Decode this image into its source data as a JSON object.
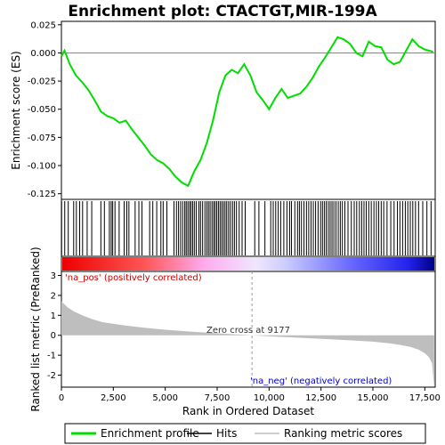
{
  "chart_data": {
    "type": "line",
    "title": "Enrichment plot: CTACTGT,MIR-199A",
    "colors": {
      "es_line": "#00dd00",
      "hits": "#000000",
      "metric_fill": "#bebebe",
      "pos_label": "#cc0000",
      "neg_label": "#0000cc",
      "zero_line": "#888888"
    },
    "top_panel": {
      "ylabel": "Enrichment score (ES)",
      "ylim": [
        -0.13,
        0.028
      ],
      "yticks": [
        0.025,
        0.0,
        -0.025,
        -0.05,
        -0.075,
        -0.1,
        -0.125
      ],
      "ytick_labels": [
        "0.025",
        "0.000",
        "-0.025",
        "-0.050",
        "-0.075",
        "-0.100",
        "-0.125"
      ],
      "series": [
        {
          "x": [
            0,
            150,
            400,
            700,
            1000,
            1300,
            1600,
            1900,
            2200,
            2500,
            2800,
            3100,
            3400,
            3700,
            4000,
            4300,
            4600,
            4900,
            5200,
            5500,
            5800,
            6100,
            6400,
            6700,
            7000,
            7300,
            7600,
            7900,
            8200,
            8500,
            8800,
            9100,
            9400,
            9700,
            10000,
            10300,
            10600,
            10900,
            11200,
            11500,
            11800,
            12100,
            12400,
            12700,
            13000,
            13300,
            13600,
            13900,
            14200,
            14500,
            14800,
            15100,
            15400,
            15700,
            16000,
            16300,
            16600,
            16900,
            17200,
            17500,
            17900
          ],
          "y": [
            -0.003,
            0.002,
            -0.01,
            -0.02,
            -0.026,
            -0.033,
            -0.042,
            -0.052,
            -0.056,
            -0.058,
            -0.062,
            -0.06,
            -0.068,
            -0.075,
            -0.082,
            -0.09,
            -0.095,
            -0.098,
            -0.103,
            -0.11,
            -0.115,
            -0.118,
            -0.105,
            -0.095,
            -0.08,
            -0.06,
            -0.035,
            -0.02,
            -0.015,
            -0.018,
            -0.01,
            -0.02,
            -0.035,
            -0.042,
            -0.05,
            -0.04,
            -0.032,
            -0.04,
            -0.038,
            -0.036,
            -0.03,
            -0.022,
            -0.012,
            -0.004,
            0.005,
            0.014,
            0.012,
            0.008,
            0.0,
            -0.003,
            0.01,
            0.006,
            0.005,
            -0.006,
            -0.01,
            -0.008,
            0.002,
            0.012,
            0.006,
            0.003,
            0.001
          ]
        }
      ]
    },
    "hits": [
      10,
      160,
      330,
      590,
      720,
      880,
      1020,
      1240,
      1460,
      1900,
      2070,
      2310,
      2400,
      2470,
      2580,
      2780,
      3020,
      3150,
      3250,
      3550,
      3730,
      3880,
      4250,
      4400,
      4590,
      4790,
      4900,
      5080,
      5420,
      5540,
      5640,
      5740,
      5840,
      5940,
      6010,
      6090,
      6170,
      6240,
      6320,
      6400,
      6490,
      6620,
      6700,
      6800,
      6910,
      7000,
      7080,
      7160,
      7250,
      7330,
      7400,
      7480,
      7560,
      7640,
      7720,
      7800,
      7880,
      7960,
      8050,
      8140,
      8240,
      8330,
      8430,
      8560,
      8700,
      8850,
      9310,
      9510,
      9800,
      10080,
      10200,
      10320,
      10440,
      10560,
      10710,
      10860,
      10990,
      11080,
      11240,
      11370,
      11460,
      11560,
      11680,
      11800,
      11910,
      12020,
      12130,
      12240,
      12360,
      12480,
      12570,
      12660,
      12750,
      12850,
      12940,
      13030,
      13120,
      13220,
      13330,
      13430,
      13530,
      13650,
      13800,
      13960,
      14100,
      14220,
      14350,
      14460,
      14570,
      14680,
      14800,
      14920,
      15050,
      15170,
      15280,
      15400,
      15520,
      15680,
      15860,
      16020,
      16180,
      16300,
      16430,
      16560,
      16680,
      16800,
      16920,
      17050,
      17200,
      17400,
      17600,
      17800
    ],
    "ranked_panel": {
      "ylabel": "Ranked list metric (PreRanked)",
      "ylim": [
        -2.6,
        3.2
      ],
      "yticks": [
        3,
        2,
        1,
        0,
        -1,
        -2
      ],
      "ytick_labels": [
        "3",
        "2",
        "1",
        "0",
        "-1",
        "-2"
      ],
      "x": [
        0,
        100,
        300,
        600,
        1000,
        1500,
        2000,
        3000,
        4000,
        5000,
        6000,
        7000,
        8000,
        9177,
        10000,
        11000,
        12000,
        13000,
        14000,
        15000,
        15800,
        16300,
        16800,
        17200,
        17500,
        17700,
        17850,
        17950
      ],
      "values": [
        1.7,
        1.6,
        1.4,
        1.2,
        1.0,
        0.8,
        0.65,
        0.5,
        0.38,
        0.28,
        0.2,
        0.13,
        0.07,
        0.0,
        -0.05,
        -0.1,
        -0.15,
        -0.2,
        -0.26,
        -0.32,
        -0.4,
        -0.48,
        -0.58,
        -0.72,
        -0.9,
        -1.1,
        -1.4,
        -2.6
      ]
    },
    "xlabel": "Rank in Ordered Dataset",
    "xlim": [
      0,
      18000
    ],
    "xticks": [
      0,
      2500,
      5000,
      7500,
      10000,
      12500,
      15000,
      17500
    ],
    "xtick_labels": [
      "0",
      "2,500",
      "5,000",
      "7,500",
      "10,000",
      "12,500",
      "15,000",
      "17,500"
    ],
    "zero_cross": 9177,
    "annotations": {
      "pos": "'na_pos' (positively correlated)",
      "neg": "'na_neg' (negatively correlated)",
      "zero": "Zero cross at 9177"
    },
    "legend": [
      {
        "label": "Enrichment profile",
        "type": "line",
        "color": "#00dd00"
      },
      {
        "label": "Hits",
        "type": "line",
        "color": "#000000"
      },
      {
        "label": "Ranking metric scores",
        "type": "line",
        "color": "#bebebe"
      }
    ]
  }
}
